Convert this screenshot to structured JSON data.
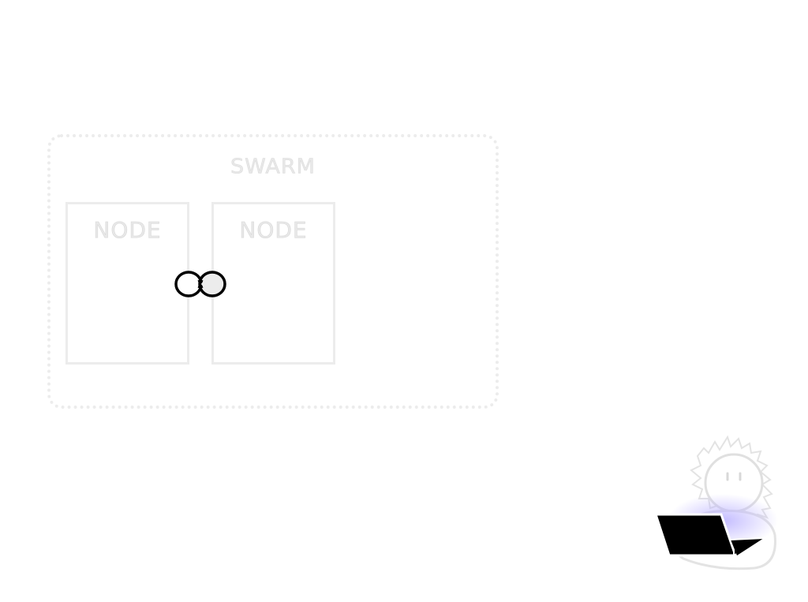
{
  "diagram": {
    "swarm": {
      "label": "SWARM"
    },
    "nodes": [
      {
        "label": "NODE"
      },
      {
        "label": "NODE"
      }
    ],
    "connector": {
      "icon": "link-icon"
    },
    "user": {
      "icon": "user-with-laptop-icon"
    }
  },
  "colors": {
    "faded_outline": "#ececec",
    "faded_text": "#e8e8e8",
    "ink": "#000000",
    "glow": "#b9b0ff"
  }
}
